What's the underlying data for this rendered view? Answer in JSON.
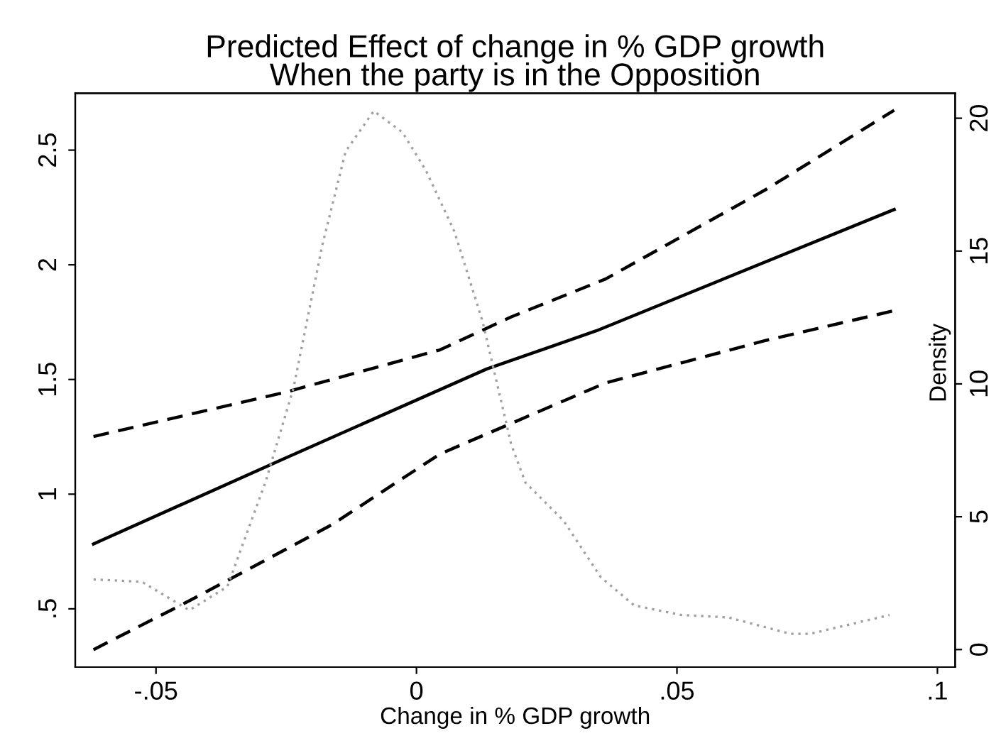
{
  "chart_data": {
    "type": "line",
    "title": "Predicted Effect of change in % GDP growth\nWhen the party is in the Opposition",
    "xlabel": "Change in % GDP growth",
    "y2label": "Density",
    "xlim": [
      -0.0655,
      0.1034
    ],
    "xticks": [
      {
        "value": -0.05,
        "label": "-.05"
      },
      0,
      {
        "value": 0.05,
        "label": ".05"
      },
      {
        "value": 0.1,
        "label": ".1"
      }
    ],
    "ylim": [
      0.246,
      2.748
    ],
    "yticks": [
      {
        "value": 0.5,
        "label": ".5"
      },
      1,
      1.5,
      2,
      2.5
    ],
    "y2lim": [
      -0.66,
      20.94
    ],
    "y2ticks": [
      0,
      5,
      10,
      15,
      20
    ],
    "grid": false,
    "legend": false,
    "marker": "none",
    "series": [
      {
        "color": "#000000",
        "line_style": "solid",
        "x": [
          -0.062,
          -0.0254,
          0.0135,
          0.0345,
          0.0917
        ],
        "values": [
          0.783,
          1.155,
          1.546,
          1.712,
          2.241
        ]
      },
      {
        "color": "#000000",
        "line_style": "dashed",
        "x": [
          -0.062,
          -0.0254,
          0.0045,
          0.0182,
          0.0363,
          0.0672,
          0.0917
        ],
        "values": [
          1.251,
          1.443,
          1.629,
          1.773,
          1.938,
          2.33,
          2.674
        ]
      },
      {
        "color": "#000000",
        "line_style": "dashed",
        "x": [
          -0.062,
          -0.0436,
          -0.0163,
          0.0045,
          0.0363,
          0.0672,
          0.0917
        ],
        "values": [
          0.322,
          0.535,
          0.866,
          1.175,
          1.485,
          1.671,
          1.8
        ]
      },
      {
        "color": "#a0a0a0",
        "line_style": "dotted",
        "axis": "y2",
        "x": [
          -0.062,
          -0.0527,
          -0.0436,
          -0.0363,
          -0.029,
          -0.0236,
          -0.0181,
          -0.0136,
          -0.0082,
          -0.0027,
          0.0018,
          0.0073,
          0.0127,
          0.0182,
          0.0209,
          0.0282,
          0.0354,
          0.0418,
          0.0509,
          0.0599,
          0.0718,
          0.0755,
          0.0908
        ],
        "values": [
          2.64,
          2.55,
          1.48,
          2.37,
          6.29,
          9.85,
          15.2,
          18.75,
          20.27,
          19.47,
          18.04,
          15.73,
          12.34,
          7.71,
          6.29,
          4.86,
          2.72,
          1.66,
          1.3,
          1.21,
          0.59,
          0.59,
          1.3
        ]
      }
    ]
  }
}
